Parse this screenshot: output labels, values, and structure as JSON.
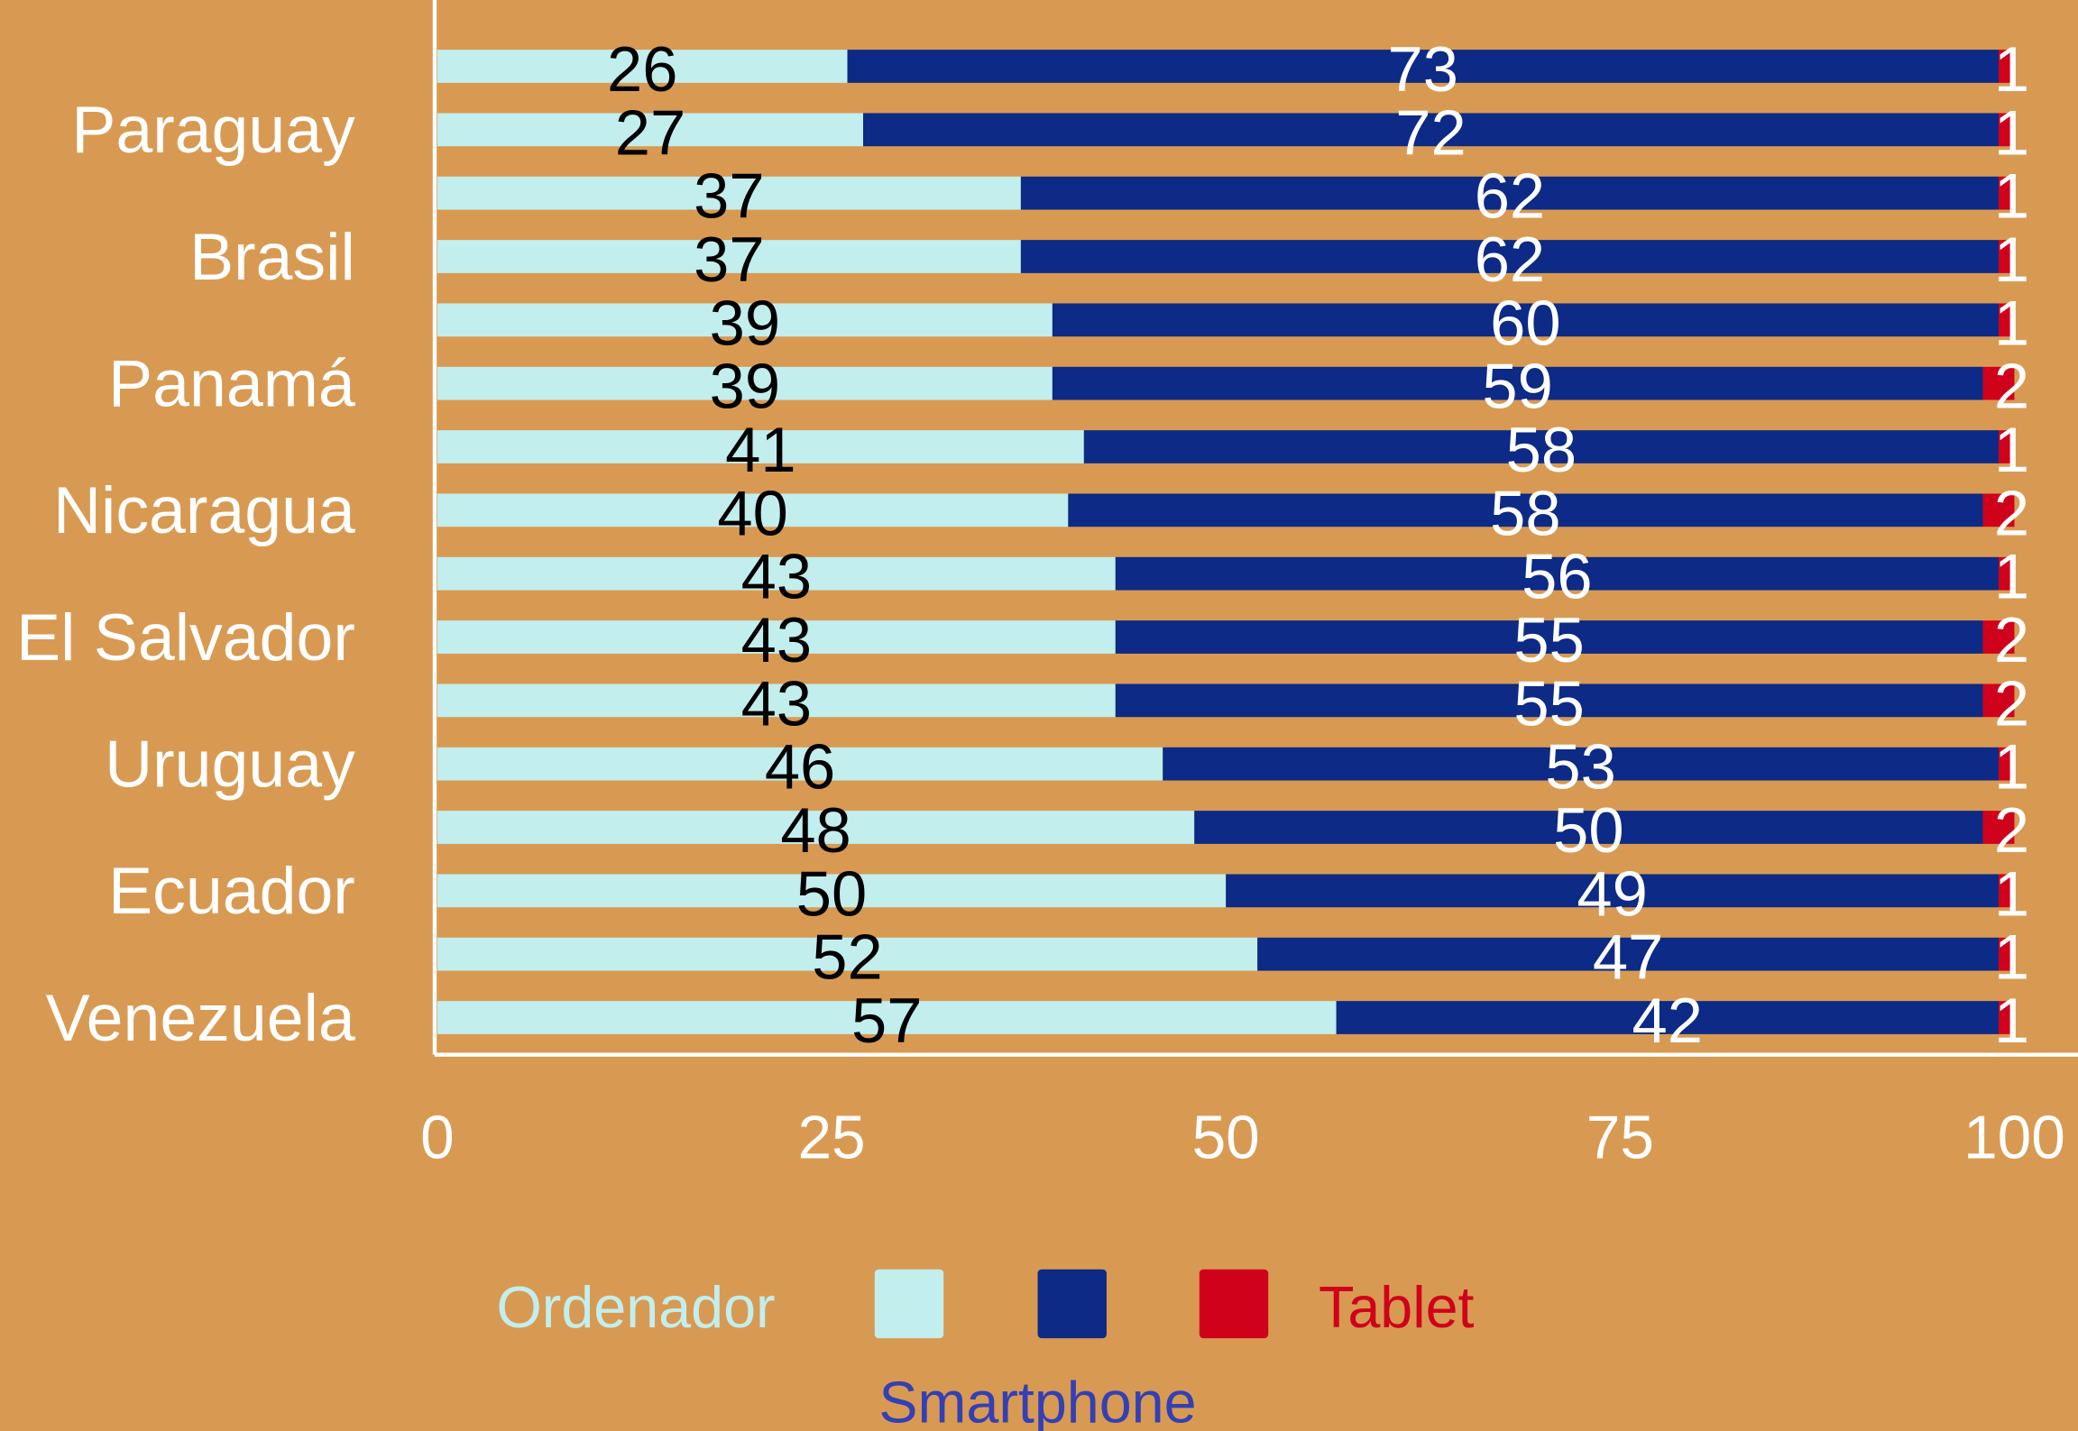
{
  "chart_data": {
    "type": "stacked-barh",
    "categories": [
      null,
      "Paraguay",
      null,
      "Brasil",
      null,
      "Panamá",
      null,
      "Nicaragua",
      null,
      "El Salvador",
      null,
      "Uruguay",
      null,
      "Ecuador",
      null,
      "Venezuela"
    ],
    "series": [
      {
        "name": "Ordenador",
        "color": "#c2eeee",
        "values": [
          26,
          27,
          37,
          37,
          39,
          39,
          41,
          40,
          43,
          43,
          43,
          46,
          48,
          50,
          52,
          57
        ]
      },
      {
        "name": "Smartphone",
        "color": "#0c2a86",
        "values": [
          73,
          72,
          62,
          62,
          60,
          59,
          58,
          58,
          56,
          55,
          55,
          53,
          50,
          49,
          47,
          42
        ]
      },
      {
        "name": "Tablet",
        "color": "#d0021b",
        "values": [
          1,
          1,
          1,
          1,
          1,
          2,
          1,
          2,
          1,
          2,
          2,
          1,
          2,
          1,
          1,
          1
        ]
      }
    ],
    "xlim": [
      0,
      100
    ],
    "xticks": [
      0,
      25,
      50,
      75,
      100
    ],
    "grid": false,
    "legend": "bottom"
  }
}
